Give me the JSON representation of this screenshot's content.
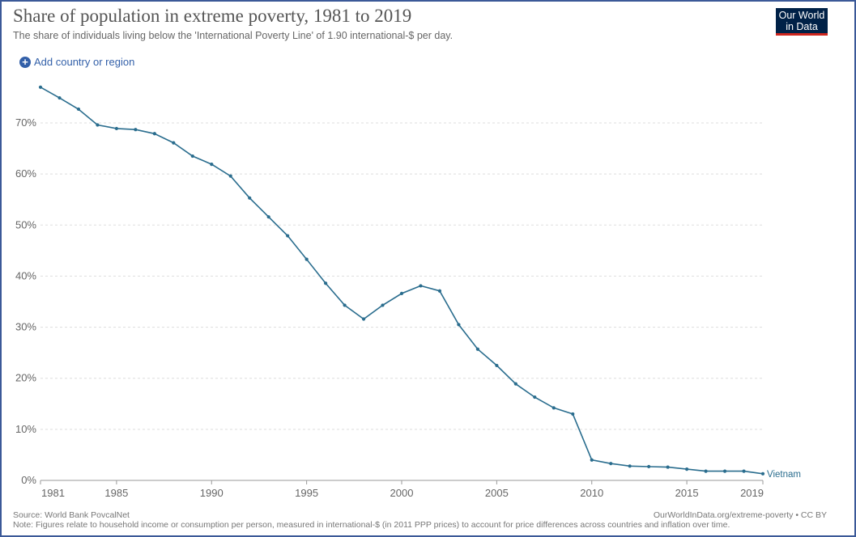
{
  "header": {
    "title": "Share of population in extreme poverty, 1981 to 2019",
    "subtitle": "The share of individuals living below the 'International Poverty Line' of 1.90 international-$ per day.",
    "logo_line1": "Our World",
    "logo_line2": "in Data"
  },
  "controls": {
    "add_country_label": "Add country or region"
  },
  "footer": {
    "source": "Source: World Bank PovcalNet",
    "url": "OurWorldInData.org/extreme-poverty • CC BY",
    "note": "Note: Figures relate to household income or consumption per person, measured in international-$ (in 2011 PPP prices) to account for price differences across countries and inflation over time."
  },
  "colors": {
    "series": "#2a6d8e",
    "grid": "#dddddd",
    "axis_text": "#666666",
    "link": "#3360a9",
    "logo_bg": "#002147",
    "logo_accent": "#ce261e"
  },
  "chart_data": {
    "type": "line",
    "title": "Share of population in extreme poverty, 1981 to 2019",
    "xlabel": "",
    "ylabel": "",
    "xlim": [
      1981,
      2019
    ],
    "ylim": [
      0,
      70
    ],
    "x_ticks": [
      "1981",
      "1985",
      "1990",
      "1995",
      "2000",
      "2005",
      "2010",
      "2015",
      "2019"
    ],
    "y_ticks": [
      "0%",
      "10%",
      "20%",
      "30%",
      "40%",
      "50%",
      "60%",
      "70%"
    ],
    "grid": true,
    "series": [
      {
        "name": "Vietnam",
        "x": [
          1981,
          1982,
          1983,
          1984,
          1985,
          1986,
          1987,
          1988,
          1989,
          1990,
          1991,
          1992,
          1993,
          1994,
          1995,
          1996,
          1997,
          1998,
          1999,
          2000,
          2001,
          2002,
          2003,
          2004,
          2005,
          2006,
          2007,
          2008,
          2009,
          2010,
          2011,
          2012,
          2013,
          2014,
          2015,
          2016,
          2017,
          2018,
          2019
        ],
        "values": [
          77.0,
          74.9,
          72.7,
          69.6,
          68.9,
          68.7,
          67.9,
          66.1,
          63.5,
          61.9,
          59.6,
          55.3,
          51.6,
          47.9,
          43.3,
          38.6,
          34.3,
          31.6,
          34.3,
          36.6,
          38.1,
          37.1,
          30.5,
          25.7,
          22.5,
          18.9,
          16.3,
          14.2,
          13.0,
          4.0,
          3.3,
          2.8,
          2.7,
          2.6,
          2.2,
          1.8,
          1.8,
          1.8,
          1.3
        ]
      }
    ]
  }
}
